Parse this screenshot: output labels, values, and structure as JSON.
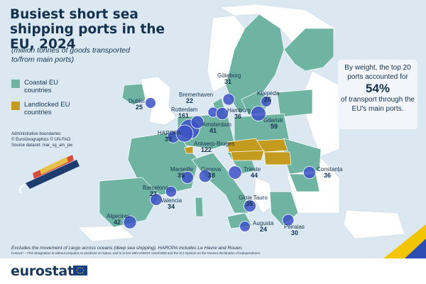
{
  "title": "Busiest short sea shipping ports in the EU, 2024",
  "subtitle": "(million tonnes of goods transported to/from main ports)",
  "legend": [
    {
      "label": "Coastal EU countries",
      "color": "#6fb3a3"
    },
    {
      "label": "Landlocked EU countries",
      "color": "#c39b1f"
    }
  ],
  "source_lines": [
    "Administrative boundaries:",
    "© EuroGeographics © UN-FAO",
    "Source dataset: mar_sg_am_pw"
  ],
  "callout": {
    "before": "By weight, the top 20 ports accounted for",
    "highlight": "54%",
    "after": "of transport through the EU's main ports."
  },
  "note": "Excludes the movement of cargo across oceans (deep sea shipping). HAROPA includes Le Havre and Rouen.",
  "note_small": "Kosovo* – This designation is without prejudice to positions on status, and is in line with UNSCR 1244/1999 and the ICJ Opinion on the Kosovo declaration of independence.",
  "brand": "eurostat",
  "colors": {
    "sea": "#dbe8f2",
    "coastal": "#6fb3a3",
    "landlocked": "#c39b1f",
    "non_eu": "#ffffff",
    "bubble": "#3d52c7",
    "accent_yellow": "#f3c500",
    "accent_blue": "#2a4cb3"
  },
  "ports": [
    {
      "name": "Göteborg",
      "value": 31
    },
    {
      "name": "Klaipėda",
      "value": 25
    },
    {
      "name": "Dublin",
      "value": 25
    },
    {
      "name": "Bremerhaven",
      "value": 22
    },
    {
      "name": "Rotterdam",
      "value": 161
    },
    {
      "name": "Hamburg",
      "value": 36
    },
    {
      "name": "Gdańsk",
      "value": 59
    },
    {
      "name": "Amsterdam",
      "value": 41
    },
    {
      "name": "HAROPA",
      "value": 33
    },
    {
      "name": "Antwerp-Bruges",
      "value": 122
    },
    {
      "name": "Marseille",
      "value": 35
    },
    {
      "name": "Genova",
      "value": 38
    },
    {
      "name": "Trieste",
      "value": 44
    },
    {
      "name": "Constanța",
      "value": 36
    },
    {
      "name": "Barcelona",
      "value": 27
    },
    {
      "name": "Valencia",
      "value": 34
    },
    {
      "name": "Gioia Tauro",
      "value": 35
    },
    {
      "name": "Algeciras",
      "value": 42
    },
    {
      "name": "Augusta",
      "value": 24
    },
    {
      "name": "Peiraias",
      "value": 30
    }
  ]
}
